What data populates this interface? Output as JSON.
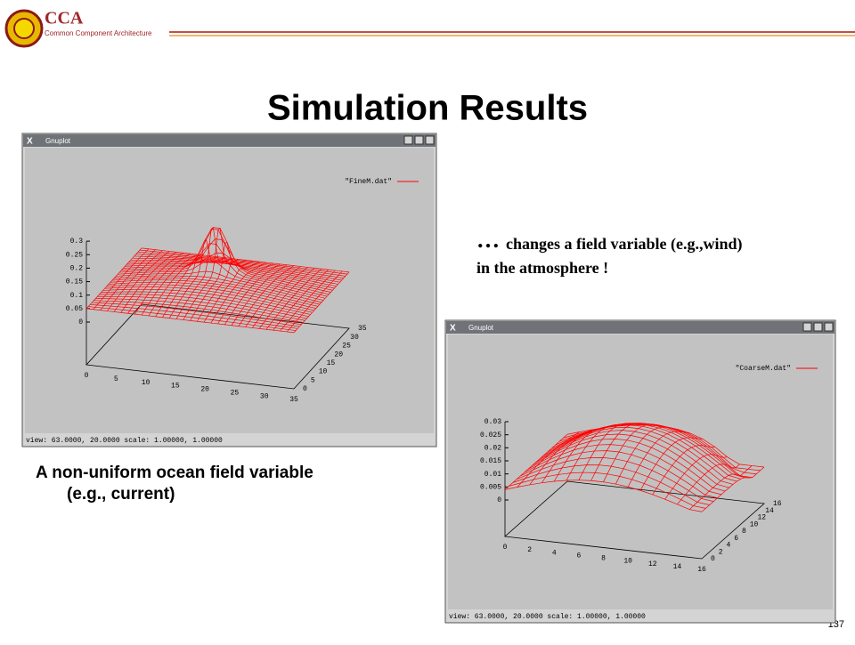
{
  "header": {
    "logo": "CCA",
    "logo_subtitle": "Common Component Architecture"
  },
  "title": "Simulation Results",
  "window1": {
    "title": "Gnuplot",
    "legend": "\"FineM.dat\"",
    "z_ticks": [
      "0",
      "0.05",
      "0.1",
      "0.15",
      "0.2",
      "0.25",
      "0.3"
    ],
    "x_ticks": [
      "0",
      "5",
      "10",
      "15",
      "20",
      "25",
      "30",
      "35"
    ],
    "y_ticks": [
      "0",
      "5",
      "10",
      "15",
      "20",
      "25",
      "30",
      "35"
    ],
    "status": "view:  63.0000, 20.0000   scale:  1.00000, 1.00000"
  },
  "caption": {
    "line1": "A non-uniform ocean field variable",
    "line2": "(e.g., current)"
  },
  "annotation": {
    "ellipsis": "…",
    "line1": "changes a field variable (e.g.,wind)",
    "line2": "in the atmosphere !"
  },
  "window2": {
    "title": "Gnuplot",
    "legend": "\"CoarseM.dat\"",
    "z_ticks": [
      "0",
      "0.005",
      "0.01",
      "0.015",
      "0.02",
      "0.025",
      "0.03"
    ],
    "x_ticks": [
      "0",
      "2",
      "4",
      "6",
      "8",
      "10",
      "12",
      "14",
      "16"
    ],
    "y_ticks": [
      "0",
      "2",
      "4",
      "6",
      "8",
      "10",
      "12",
      "14",
      "16"
    ],
    "status": "view:  63.0000,  20.0000   scale:  1.00000,  1.00000"
  },
  "page_number": "137"
}
